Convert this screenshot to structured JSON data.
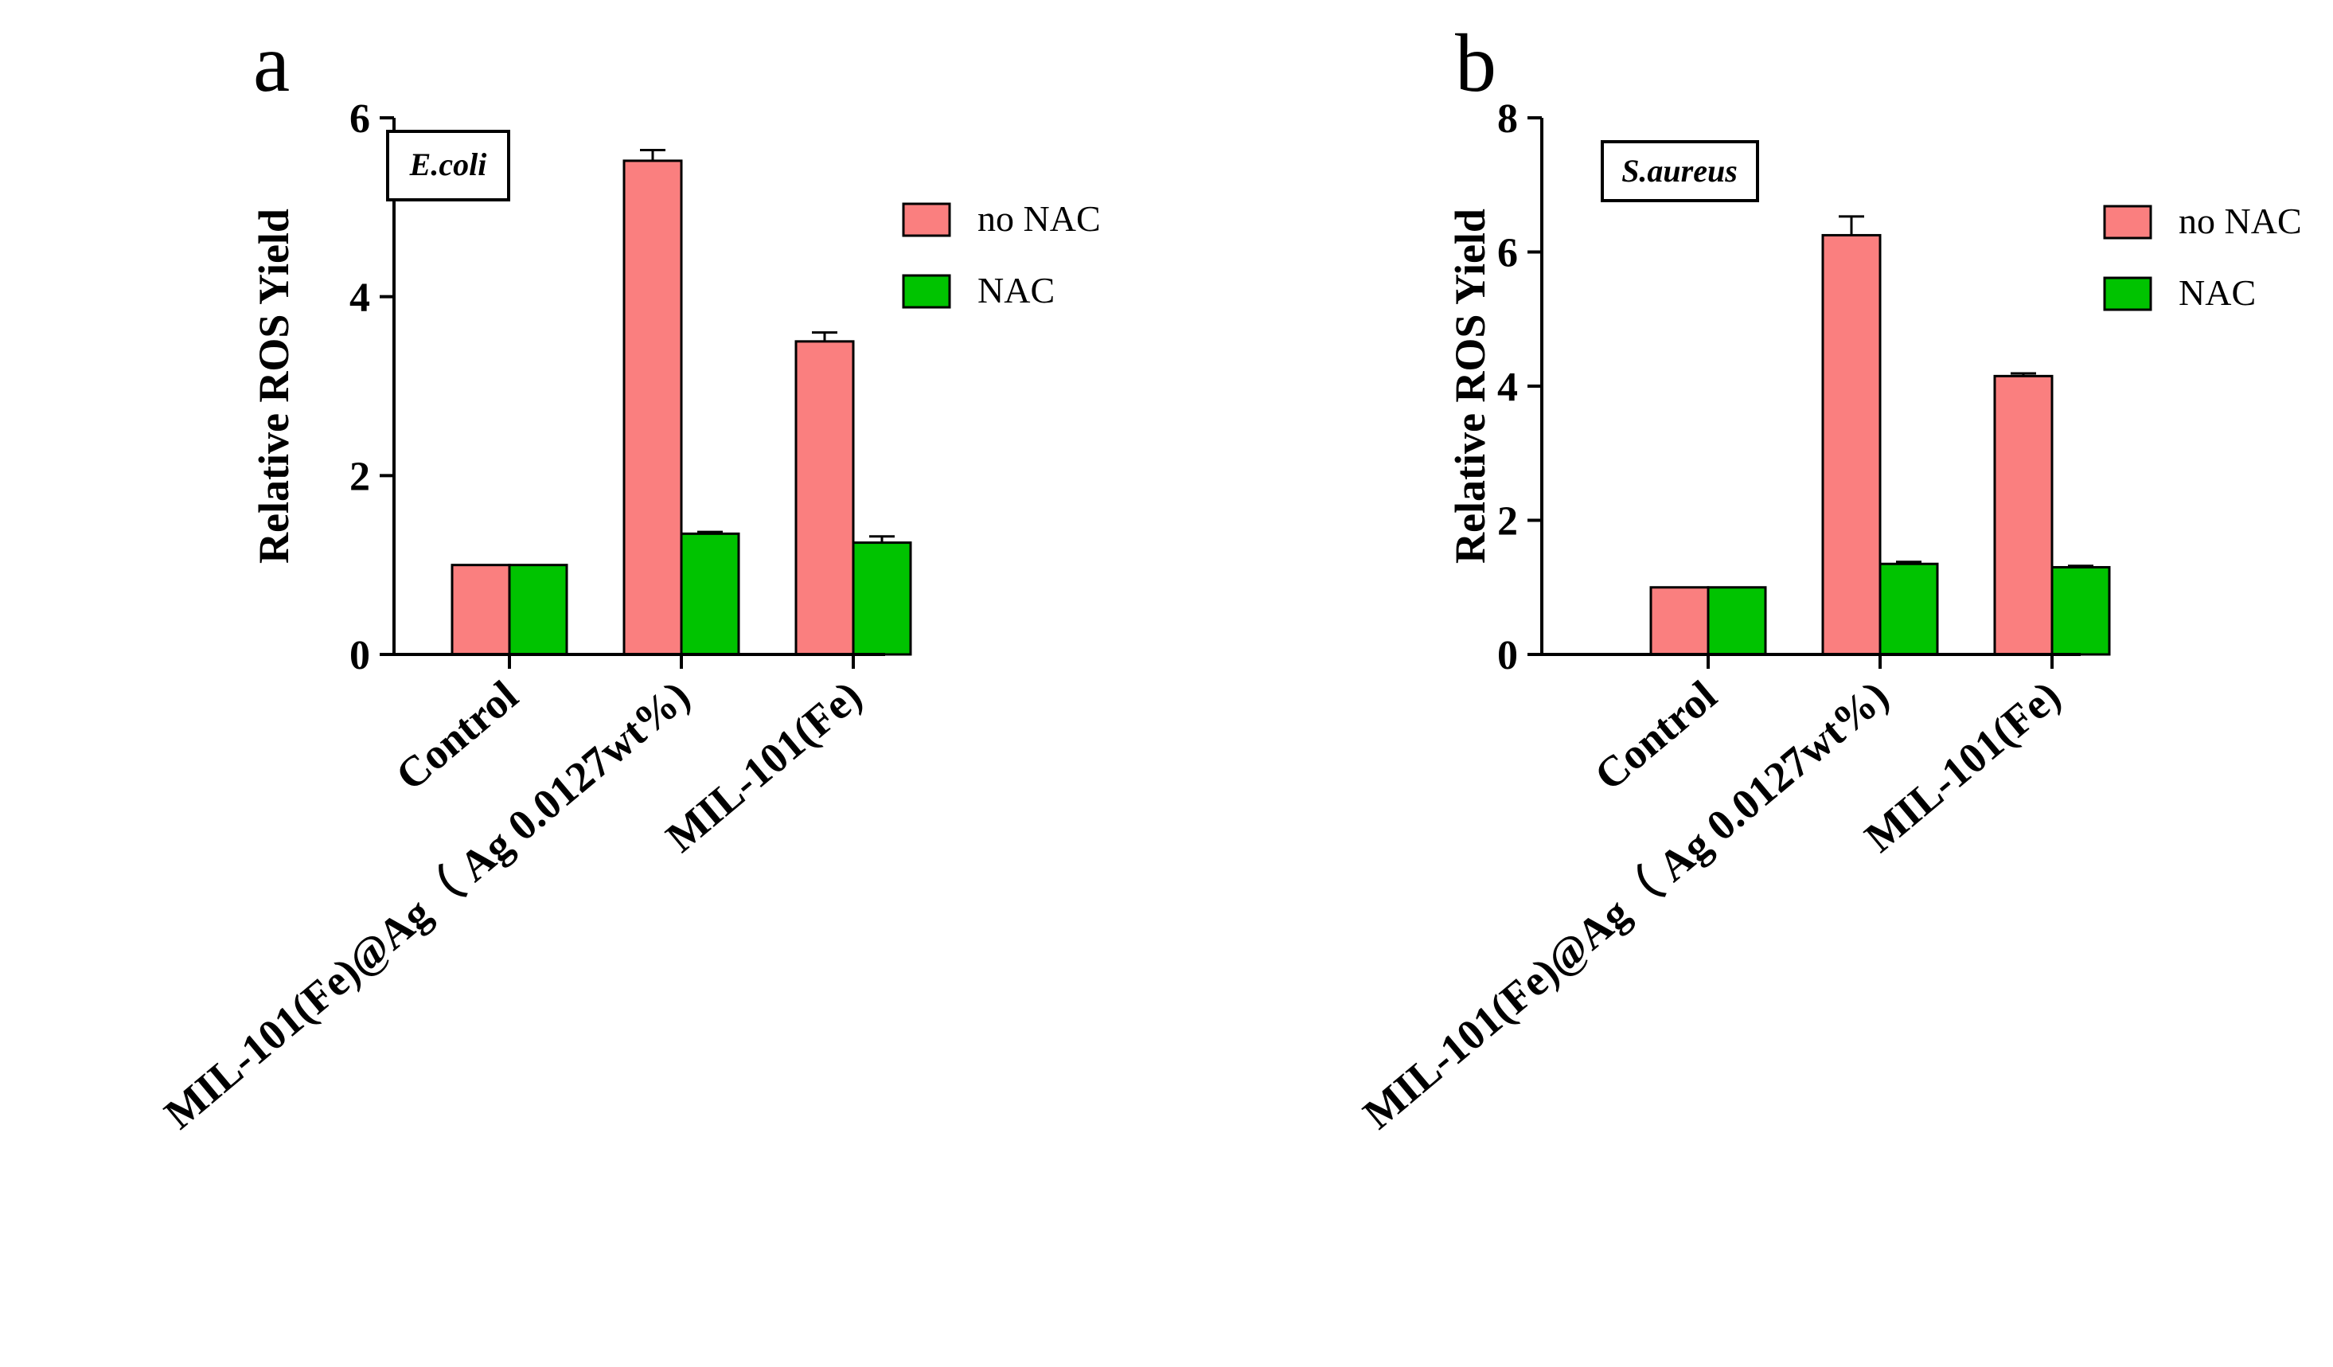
{
  "colors": {
    "no_nac": "#fa7f7f",
    "nac": "#00c300",
    "axis": "#000000"
  },
  "chart_data": [
    {
      "type": "bar",
      "panel_label": "a",
      "organism": "E.coli",
      "ylabel": "Relative ROS Yield",
      "ylim": [
        0,
        6
      ],
      "yticks": [
        0,
        2,
        4,
        6
      ],
      "categories": [
        "Control",
        "MIL-101(Fe)@Ag（ Ag 0.0127wt%)",
        "MIL-101(Fe)"
      ],
      "legend_position": "right",
      "series": [
        {
          "name": "no NAC",
          "color_key": "no_nac",
          "values": [
            1.0,
            5.52,
            3.5
          ],
          "errors": [
            0,
            0.12,
            0.1
          ]
        },
        {
          "name": "NAC",
          "color_key": "nac",
          "values": [
            1.0,
            1.35,
            1.25
          ],
          "errors": [
            0,
            0.02,
            0.07
          ]
        }
      ]
    },
    {
      "type": "bar",
      "panel_label": "b",
      "organism": "S.aureus",
      "ylabel": "Relative ROS Yield",
      "ylim": [
        0,
        8
      ],
      "yticks": [
        0,
        2,
        4,
        6,
        8
      ],
      "categories": [
        "Control",
        "MIL-101(Fe)@Ag（ Ag 0.0127wt%)",
        "MIL-101(Fe)"
      ],
      "legend_position": "right",
      "series": [
        {
          "name": "no NAC",
          "color_key": "no_nac",
          "values": [
            1.0,
            6.25,
            4.15
          ],
          "errors": [
            0,
            0.28,
            0.04
          ]
        },
        {
          "name": "NAC",
          "color_key": "nac",
          "values": [
            1.0,
            1.35,
            1.3
          ],
          "errors": [
            0,
            0.03,
            0.02
          ]
        }
      ]
    }
  ]
}
